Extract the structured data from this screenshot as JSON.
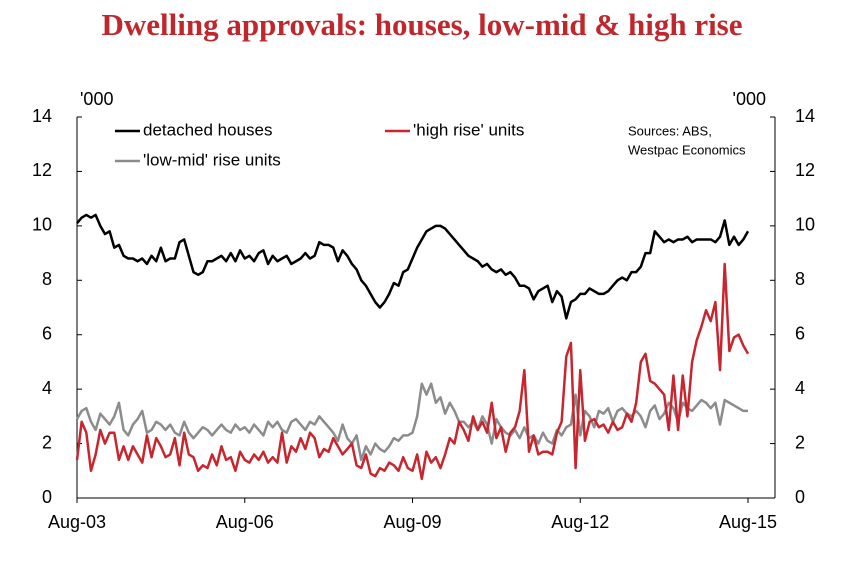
{
  "chart_data": {
    "type": "line",
    "title": "Dwelling approvals: houses, low-mid & high rise",
    "y_unit_left": "'000",
    "y_unit_right": "'000",
    "note": [
      "Sources: ABS,",
      "Westpac Economics"
    ],
    "categories": [
      "Aug-03",
      null,
      null,
      null,
      null,
      null,
      null,
      null,
      null,
      null,
      null,
      null,
      null,
      null,
      null,
      null,
      null,
      null,
      null,
      null,
      null,
      null,
      null,
      null,
      null,
      null,
      null,
      null,
      null,
      null,
      null,
      null,
      null,
      null,
      null,
      null,
      "Aug-06",
      null,
      null,
      null,
      null,
      null,
      null,
      null,
      null,
      null,
      null,
      null,
      null,
      null,
      null,
      null,
      null,
      null,
      null,
      null,
      null,
      null,
      null,
      null,
      null,
      null,
      null,
      null,
      null,
      null,
      null,
      null,
      null,
      null,
      null,
      null,
      "Aug-09",
      null,
      null,
      null,
      null,
      null,
      null,
      null,
      null,
      null,
      null,
      null,
      null,
      null,
      null,
      null,
      null,
      null,
      null,
      null,
      null,
      null,
      null,
      null,
      null,
      null,
      null,
      null,
      null,
      null,
      null,
      null,
      null,
      null,
      null,
      null,
      "Aug-12",
      null,
      null,
      null,
      null,
      null,
      null,
      null,
      null,
      null,
      null,
      null,
      null,
      null,
      null,
      null,
      null,
      null,
      null,
      null,
      null,
      null,
      null,
      null,
      null,
      null,
      null,
      null,
      null,
      null,
      null,
      null,
      null,
      null,
      null,
      null,
      "Aug-15"
    ],
    "series": [
      {
        "name": "detached houses",
        "color": "#000000",
        "values": [
          10.1,
          10.3,
          10.4,
          10.3,
          10.4,
          10.0,
          9.7,
          9.8,
          9.2,
          9.3,
          8.9,
          8.8,
          8.8,
          8.7,
          8.8,
          8.6,
          8.9,
          8.7,
          9.2,
          8.7,
          8.8,
          8.8,
          9.4,
          9.5,
          8.9,
          8.3,
          8.2,
          8.3,
          8.7,
          8.7,
          8.8,
          8.9,
          8.7,
          9.0,
          8.7,
          9.1,
          8.8,
          8.9,
          8.7,
          9.0,
          9.1,
          8.6,
          8.9,
          8.7,
          8.8,
          8.9,
          8.6,
          8.7,
          8.8,
          9.0,
          8.8,
          8.9,
          9.4,
          9.3,
          9.3,
          9.2,
          8.7,
          9.1,
          8.9,
          8.6,
          8.4,
          8.0,
          7.8,
          7.5,
          7.2,
          7.0,
          7.2,
          7.5,
          7.9,
          7.8,
          8.3,
          8.4,
          8.8,
          9.2,
          9.5,
          9.8,
          9.9,
          10.0,
          10.0,
          9.9,
          9.7,
          9.5,
          9.3,
          9.1,
          8.9,
          8.8,
          8.7,
          8.5,
          8.6,
          8.4,
          8.3,
          8.4,
          8.2,
          8.3,
          8.1,
          7.8,
          7.8,
          7.7,
          7.3,
          7.6,
          7.7,
          7.8,
          7.2,
          7.6,
          7.4,
          6.6,
          7.2,
          7.3,
          7.5,
          7.5,
          7.7,
          7.6,
          7.5,
          7.5,
          7.6,
          7.8,
          8.0,
          8.1,
          8.0,
          8.3,
          8.3,
          8.5,
          9.0,
          9.0,
          9.8,
          9.6,
          9.4,
          9.5,
          9.4,
          9.5,
          9.5,
          9.6,
          9.4,
          9.5,
          9.5,
          9.5,
          9.5,
          9.4,
          9.6,
          10.2,
          9.3,
          9.6,
          9.3,
          9.5,
          9.8
        ]
      },
      {
        "name": "'high rise' units",
        "color": "#c8262e",
        "values": [
          1.4,
          2.8,
          2.4,
          1.0,
          1.6,
          2.5,
          2.0,
          2.4,
          2.4,
          1.4,
          1.9,
          1.4,
          1.9,
          1.6,
          1.3,
          2.3,
          1.5,
          2.2,
          1.9,
          1.5,
          1.6,
          2.2,
          1.2,
          2.4,
          1.6,
          1.5,
          1.0,
          1.2,
          1.1,
          1.6,
          1.2,
          1.9,
          1.4,
          1.5,
          1.0,
          1.7,
          1.4,
          1.3,
          1.6,
          1.4,
          1.7,
          1.3,
          1.5,
          1.3,
          2.4,
          1.3,
          1.9,
          1.7,
          2.2,
          1.8,
          2.4,
          2.2,
          1.5,
          1.8,
          1.7,
          2.2,
          1.9,
          1.6,
          1.8,
          2.0,
          1.2,
          1.1,
          1.6,
          0.9,
          0.8,
          1.1,
          1.0,
          1.3,
          1.2,
          1.0,
          1.5,
          1.1,
          1.0,
          1.6,
          0.7,
          1.7,
          1.3,
          1.5,
          1.1,
          1.6,
          2.2,
          2.0,
          2.8,
          2.5,
          2.1,
          3.0,
          2.5,
          2.8,
          2.4,
          3.5,
          2.2,
          2.6,
          1.7,
          2.4,
          2.6,
          3.2,
          4.7,
          1.7,
          2.3,
          1.6,
          1.7,
          1.7,
          1.6,
          2.4,
          2.8,
          5.2,
          5.7,
          1.1,
          4.7,
          2.1,
          2.8,
          2.9,
          2.6,
          2.7,
          2.4,
          2.8,
          2.5,
          2.6,
          3.1,
          2.8,
          3.5,
          5.0,
          5.3,
          4.3,
          4.2,
          4.0,
          3.8,
          2.5,
          4.5,
          2.5,
          4.5,
          3.0,
          5.0,
          5.8,
          6.3,
          6.9,
          6.5,
          7.2,
          4.7,
          8.6,
          5.4,
          5.9,
          6.0,
          5.6,
          5.3
        ]
      },
      {
        "name": "'low-mid' rise units",
        "color": "#8c8c8c",
        "values": [
          2.9,
          3.2,
          3.3,
          2.8,
          2.5,
          3.1,
          2.9,
          2.7,
          3.0,
          3.5,
          2.5,
          2.3,
          2.7,
          2.9,
          3.2,
          2.4,
          2.5,
          2.8,
          2.7,
          2.5,
          2.7,
          2.4,
          2.3,
          2.8,
          2.4,
          2.2,
          2.4,
          2.6,
          2.5,
          2.3,
          2.5,
          2.7,
          2.5,
          2.4,
          2.7,
          2.5,
          2.6,
          2.4,
          2.7,
          2.5,
          2.3,
          2.8,
          2.6,
          2.8,
          2.5,
          2.4,
          2.8,
          2.9,
          2.7,
          2.5,
          2.8,
          2.7,
          3.0,
          2.8,
          2.6,
          2.4,
          2.1,
          2.7,
          2.2,
          2.0,
          2.3,
          1.4,
          1.9,
          1.6,
          2.0,
          1.8,
          1.7,
          1.9,
          2.2,
          2.1,
          2.3,
          2.3,
          2.4,
          3.0,
          4.2,
          3.8,
          4.2,
          3.5,
          3.7,
          3.1,
          3.5,
          3.2,
          2.8,
          2.8,
          2.6,
          2.8,
          2.5,
          3.0,
          2.7,
          2.0,
          2.9,
          2.6,
          2.4,
          2.3,
          2.5,
          2.2,
          2.6,
          2.2,
          2.3,
          2.0,
          2.4,
          2.1,
          2.0,
          2.5,
          2.3,
          2.6,
          2.7,
          3.8,
          2.3,
          3.2,
          3.0,
          2.6,
          3.2,
          3.1,
          3.3,
          2.8,
          3.2,
          3.3,
          3.1,
          3.0,
          3.2,
          3.0,
          2.6,
          3.2,
          3.4,
          2.9,
          3.1,
          3.5,
          3.3,
          2.8,
          3.5,
          3.3,
          3.2,
          3.4,
          3.6,
          3.5,
          3.3,
          3.5,
          2.7,
          3.6,
          3.5,
          3.4,
          3.3,
          3.2,
          3.2
        ]
      }
    ],
    "ylim": [
      0,
      14
    ],
    "yticks": [
      0,
      2,
      4,
      6,
      8,
      10,
      12,
      14
    ],
    "y2lim": [
      0,
      14
    ],
    "y2ticks": [
      0,
      2,
      4,
      6,
      8,
      10,
      12,
      14
    ],
    "grid": false
  }
}
